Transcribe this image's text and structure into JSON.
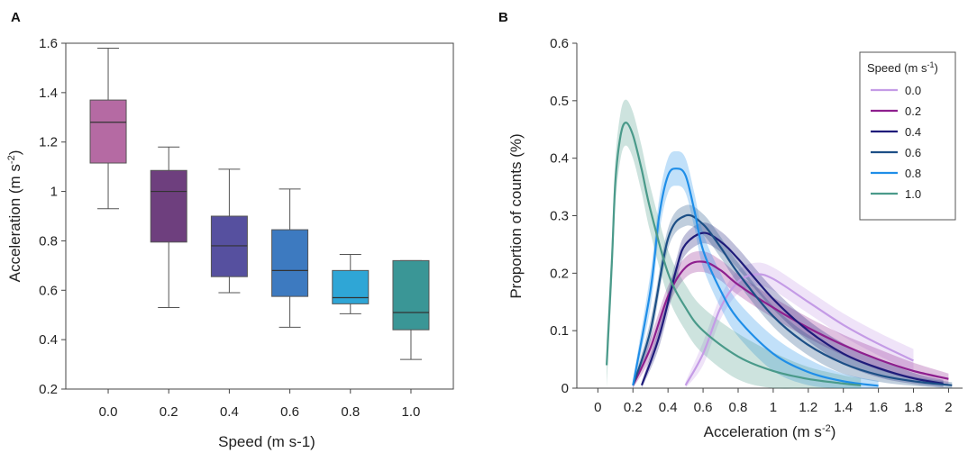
{
  "chart_data": [
    {
      "panel": "A",
      "type": "box",
      "xlabel": "Speed (m s-1)",
      "ylabel_main": "Acceleration (m s",
      "ylabel_sup": "-2",
      "ylabel_end": ")",
      "ylim": [
        0.2,
        1.6
      ],
      "yticks": [
        "0.2",
        "0.4",
        "0.6",
        "0.8",
        "1",
        "1.2",
        "1.4",
        "1.6"
      ],
      "categories": [
        "0.0",
        "0.2",
        "0.4",
        "0.6",
        "0.8",
        "1.0"
      ],
      "boxes": [
        {
          "category": "0.0",
          "min": 0.93,
          "q1": 1.115,
          "median": 1.28,
          "q3": 1.37,
          "max": 1.58,
          "color": "#b56aa3"
        },
        {
          "category": "0.2",
          "min": 0.53,
          "q1": 0.795,
          "median": 1.0,
          "q3": 1.085,
          "max": 1.18,
          "color": "#6e3f7e"
        },
        {
          "category": "0.4",
          "min": 0.59,
          "q1": 0.655,
          "median": 0.78,
          "q3": 0.9,
          "max": 1.09,
          "color": "#56509f"
        },
        {
          "category": "0.6",
          "min": 0.45,
          "q1": 0.575,
          "median": 0.68,
          "q3": 0.845,
          "max": 1.01,
          "color": "#3d7ac0"
        },
        {
          "category": "0.8",
          "min": 0.505,
          "q1": 0.545,
          "median": 0.57,
          "q3": 0.68,
          "max": 0.745,
          "color": "#2fa6d6"
        },
        {
          "category": "1.0",
          "min": 0.32,
          "q1": 0.44,
          "median": 0.51,
          "q3": 0.72,
          "max": 0.72,
          "color": "#3a9696"
        }
      ]
    },
    {
      "panel": "B",
      "type": "line",
      "xlabel_main": "Acceleration (m s",
      "xlabel_sup": "-2",
      "xlabel_end": ")",
      "ylabel": "Proportion of counts (%)",
      "xlim": [
        -0.12,
        2.08
      ],
      "ylim": [
        0,
        0.6
      ],
      "xticks": [
        "0",
        "0.2",
        "0.4",
        "0.6",
        "0.8",
        "1",
        "1.2",
        "1.4",
        "1.6",
        "1.8",
        "2"
      ],
      "yticks": [
        "0",
        "0.1",
        "0.2",
        "0.3",
        "0.4",
        "0.5",
        "0.6"
      ],
      "legend_title_main": "Speed (m s",
      "legend_title_sup": "-1",
      "legend_title_end": ")",
      "legend_position": "top-right",
      "series": [
        {
          "name": "0.0",
          "color": "#c49be6",
          "x": [
            0.5,
            0.6,
            0.7,
            0.8,
            0.9,
            1.0,
            1.2,
            1.4,
            1.6,
            1.8
          ],
          "y": [
            0.005,
            0.06,
            0.14,
            0.185,
            0.198,
            0.19,
            0.15,
            0.11,
            0.077,
            0.048
          ],
          "band": 0.02
        },
        {
          "name": "0.2",
          "color": "#8e1f8e",
          "x": [
            0.2,
            0.3,
            0.4,
            0.5,
            0.6,
            0.7,
            0.8,
            1.0,
            1.2,
            1.4,
            1.6,
            1.8,
            2.0
          ],
          "y": [
            0.005,
            0.07,
            0.16,
            0.21,
            0.22,
            0.205,
            0.18,
            0.14,
            0.105,
            0.075,
            0.05,
            0.03,
            0.016
          ],
          "band": 0.018
        },
        {
          "name": "0.4",
          "color": "#1e1b7a",
          "x": [
            0.25,
            0.35,
            0.45,
            0.5,
            0.6,
            0.7,
            0.8,
            1.0,
            1.2,
            1.4,
            1.6,
            1.8,
            1.97
          ],
          "y": [
            0.005,
            0.09,
            0.21,
            0.25,
            0.27,
            0.255,
            0.225,
            0.155,
            0.1,
            0.06,
            0.035,
            0.017,
            0.008
          ],
          "band": 0.018
        },
        {
          "name": "0.6",
          "color": "#1d4f86",
          "x": [
            0.2,
            0.3,
            0.4,
            0.5,
            0.6,
            0.7,
            0.8,
            1.0,
            1.2,
            1.4,
            1.6,
            1.8,
            2.02
          ],
          "y": [
            0.005,
            0.1,
            0.26,
            0.3,
            0.285,
            0.245,
            0.2,
            0.125,
            0.075,
            0.043,
            0.023,
            0.012,
            0.005
          ],
          "band": 0.018
        },
        {
          "name": "0.8",
          "color": "#1f8ee8",
          "x": [
            0.2,
            0.3,
            0.35,
            0.4,
            0.45,
            0.5,
            0.55,
            0.6,
            0.7,
            0.8,
            1.0,
            1.2,
            1.4,
            1.6
          ],
          "y": [
            0.005,
            0.17,
            0.3,
            0.37,
            0.382,
            0.37,
            0.31,
            0.24,
            0.17,
            0.12,
            0.06,
            0.028,
            0.012,
            0.004
          ],
          "band": 0.03
        },
        {
          "name": "1.0",
          "color": "#4a9a8a",
          "x": [
            0.05,
            0.08,
            0.1,
            0.13,
            0.16,
            0.2,
            0.25,
            0.3,
            0.4,
            0.5,
            0.6,
            0.8,
            1.0,
            1.2,
            1.4,
            1.5
          ],
          "y": [
            0.04,
            0.22,
            0.36,
            0.44,
            0.462,
            0.44,
            0.38,
            0.31,
            0.2,
            0.14,
            0.1,
            0.055,
            0.03,
            0.016,
            0.008,
            0.005
          ],
          "band": 0.04
        }
      ]
    }
  ]
}
